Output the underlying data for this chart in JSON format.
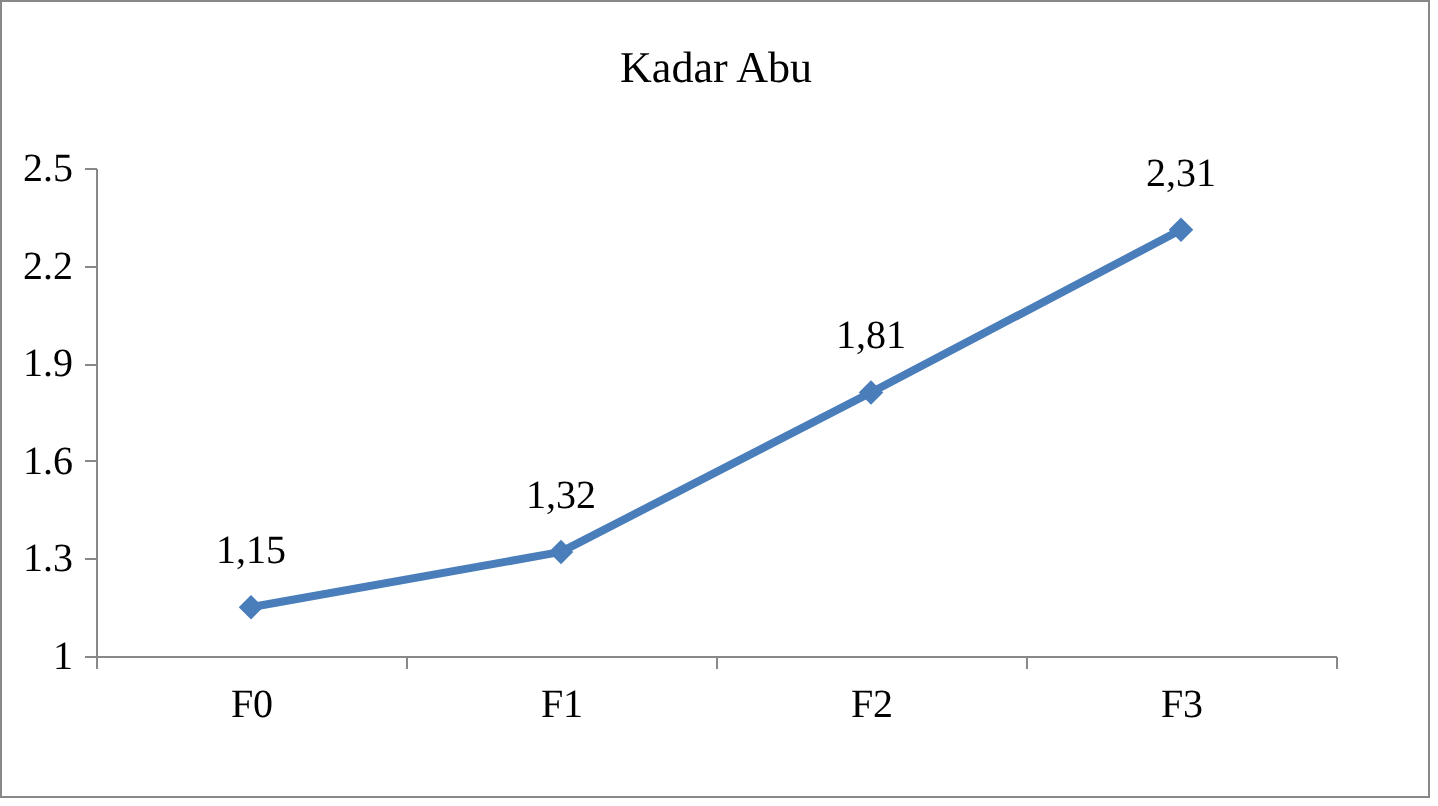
{
  "chart_data": {
    "type": "line",
    "title": "Kadar Abu",
    "categories": [
      "F0",
      "F1",
      "F2",
      "F3"
    ],
    "series": [
      {
        "color": "#4a7ebb",
        "values": [
          1.15,
          1.32,
          1.81,
          2.31
        ],
        "value_labels": [
          "1,15",
          "1,32",
          "1,81",
          "2,31"
        ]
      }
    ],
    "ylim": [
      1,
      2.5
    ],
    "yticks": [
      1,
      1.3,
      1.6,
      1.9,
      2.2,
      2.5
    ],
    "grid": false,
    "legend": false,
    "marker": "diamond",
    "line_style": "solid"
  }
}
